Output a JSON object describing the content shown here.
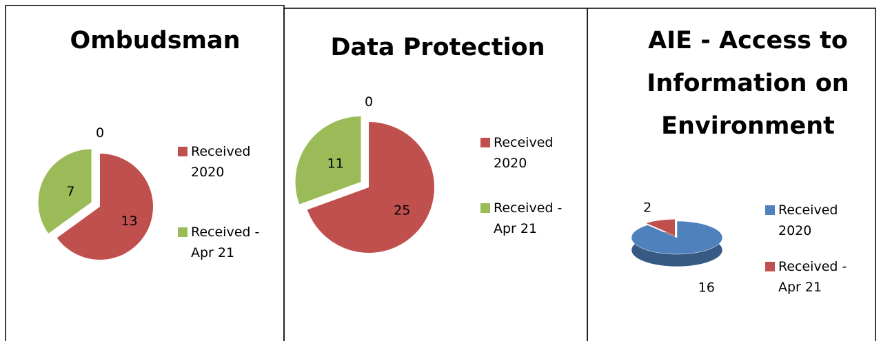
{
  "chart_data": [
    {
      "type": "pie",
      "title": "Ombudsman",
      "categories": [
        "Received 2020",
        "Received - Apr 21",
        null
      ],
      "values": [
        13,
        7,
        0
      ],
      "colors": [
        "#c0504d",
        "#9bbb59",
        "#4f81bd"
      ]
    },
    {
      "type": "pie",
      "title": "Data Protection",
      "categories": [
        "Received 2020",
        "Received - Apr 21",
        null
      ],
      "values": [
        25,
        11,
        0
      ],
      "colors": [
        "#c0504d",
        "#9bbb59",
        "#4f81bd"
      ]
    },
    {
      "type": "pie3d",
      "title": "AIE - Access to Information on Environment",
      "categories": [
        "Received 2020",
        "Received - Apr 21"
      ],
      "values": [
        16,
        2
      ],
      "colors": [
        "#4f81bd",
        "#c0504d"
      ]
    }
  ]
}
